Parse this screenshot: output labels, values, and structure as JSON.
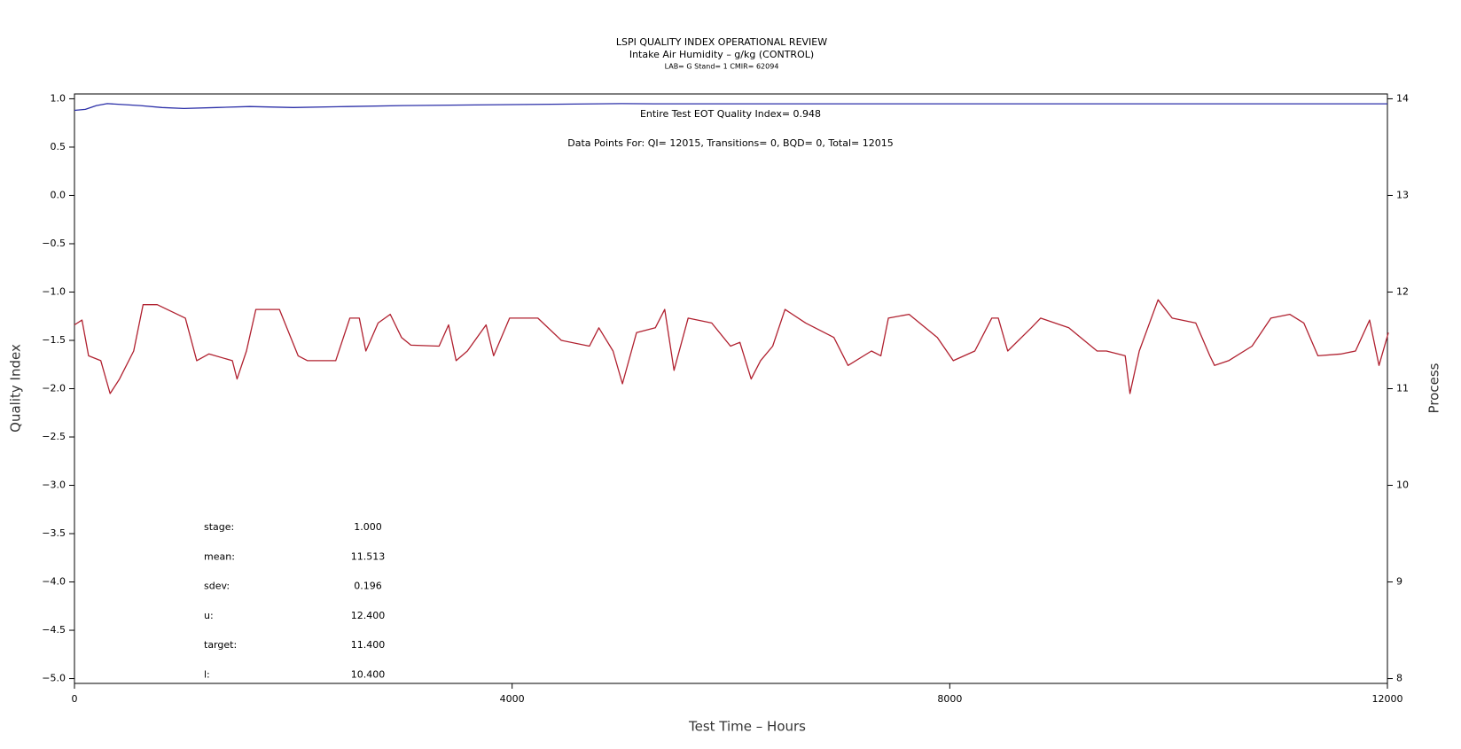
{
  "chart_data": {
    "type": "line",
    "title": "LSPI QUALITY INDEX OPERATIONAL REVIEW",
    "subtitle": "Intake Air Humidity – g/kg (CONTROL)",
    "caption": "LAB= G Stand= 1 CMIR= 62094",
    "annotations": [
      "Entire Test EOT Quality Index=   0.948",
      "Data Points For: QI= 12015, Transitions=     0, BQD=     0, Total= 12015"
    ],
    "stats": [
      {
        "label": "stage:",
        "value": "1.000"
      },
      {
        "label": "mean:",
        "value": "11.513"
      },
      {
        "label": "sdev:",
        "value": "0.196"
      },
      {
        "label": "u:",
        "value": "12.400"
      },
      {
        "label": "target:",
        "value": "11.400"
      },
      {
        "label": "l:",
        "value": "10.400"
      }
    ],
    "xlabel": "Test Time – Hours",
    "ylabel": "Quality Index",
    "y2label": "Process",
    "xlim": [
      0,
      12000
    ],
    "xticks": [
      0,
      4000,
      8000,
      12000
    ],
    "ylim": [
      -5.05,
      1.05
    ],
    "yticks": [
      {
        "value": 1,
        "label": "1.0"
      },
      {
        "value": 0.5,
        "label": "0.5"
      },
      {
        "value": 0,
        "label": "0.0"
      },
      {
        "value": -0.5,
        "label": "−0.5"
      },
      {
        "value": -1,
        "label": "−1.0"
      },
      {
        "value": -1.5,
        "label": "−1.5"
      },
      {
        "value": -2,
        "label": "−2.0"
      },
      {
        "value": -2.5,
        "label": "−2.5"
      },
      {
        "value": -3,
        "label": "−3.0"
      },
      {
        "value": -3.5,
        "label": "−3.5"
      },
      {
        "value": -4,
        "label": "−4.0"
      },
      {
        "value": -4.5,
        "label": "−4.5"
      },
      {
        "value": -5,
        "label": "−5.0"
      }
    ],
    "y2lim": [
      7.95,
      14.05
    ],
    "y2ticks": [
      8,
      9,
      10,
      11,
      12,
      13,
      14
    ],
    "series": [
      {
        "color": "#2b2fa8",
        "x": [
          0,
          100,
          200,
          300,
          450,
          600,
          800,
          1000,
          1300,
          1600,
          2000,
          2500,
          3000,
          4000,
          5000,
          5300,
          6000,
          8000,
          10000,
          12000
        ],
        "values": [
          0.88,
          0.89,
          0.93,
          0.95,
          0.94,
          0.93,
          0.91,
          0.9,
          0.91,
          0.92,
          0.91,
          0.92,
          0.93,
          0.94,
          0.95,
          0.948,
          0.948,
          0.948,
          0.948,
          0.948
        ]
      },
      {
        "axis": "y2",
        "color": "#b0202f",
        "x": [
          0,
          69,
          129,
          241,
          326,
          412,
          541,
          627,
          756,
          1014,
          1117,
          1228,
          1443,
          1486,
          1572,
          1658,
          1873,
          2044,
          2130,
          2388,
          2517,
          2603,
          2663,
          2775,
          2886,
          2989,
          3075,
          3333,
          3419,
          3488,
          3591,
          3762,
          3831,
          3977,
          4235,
          4450,
          4707,
          4793,
          4922,
          5008,
          5137,
          5309,
          5395,
          5480,
          5609,
          5824,
          5996,
          6082,
          6185,
          6271,
          6382,
          6494,
          6683,
          6941,
          7070,
          7284,
          7370,
          7439,
          7628,
          7886,
          8032,
          8229,
          8384,
          8444,
          8530,
          8745,
          8830,
          9088,
          9346,
          9432,
          9603,
          9647,
          9732,
          9904,
          10033,
          10248,
          10377,
          10420,
          10549,
          10763,
          10935,
          11107,
          11236,
          11365,
          11580,
          11708,
          11837,
          11923,
          12009
        ],
        "values": [
          11.66,
          11.71,
          11.34,
          11.29,
          10.95,
          11.1,
          11.39,
          11.87,
          11.87,
          11.73,
          11.29,
          11.36,
          11.29,
          11.1,
          11.39,
          11.82,
          11.82,
          11.34,
          11.29,
          11.29,
          11.73,
          11.73,
          11.39,
          11.68,
          11.77,
          11.53,
          11.45,
          11.44,
          11.66,
          11.29,
          11.39,
          11.66,
          11.34,
          11.73,
          11.73,
          11.5,
          11.44,
          11.63,
          11.39,
          11.05,
          11.58,
          11.63,
          11.82,
          11.19,
          11.73,
          11.68,
          11.44,
          11.48,
          11.1,
          11.29,
          11.44,
          11.82,
          11.68,
          11.53,
          11.24,
          11.39,
          11.34,
          11.73,
          11.77,
          11.53,
          11.29,
          11.39,
          11.73,
          11.73,
          11.39,
          11.63,
          11.73,
          11.63,
          11.39,
          11.39,
          11.34,
          10.95,
          11.39,
          11.92,
          11.73,
          11.68,
          11.34,
          11.24,
          11.29,
          11.44,
          11.73,
          11.77,
          11.68,
          11.34,
          11.36,
          11.39,
          11.71,
          11.24,
          11.58
        ]
      }
    ]
  }
}
